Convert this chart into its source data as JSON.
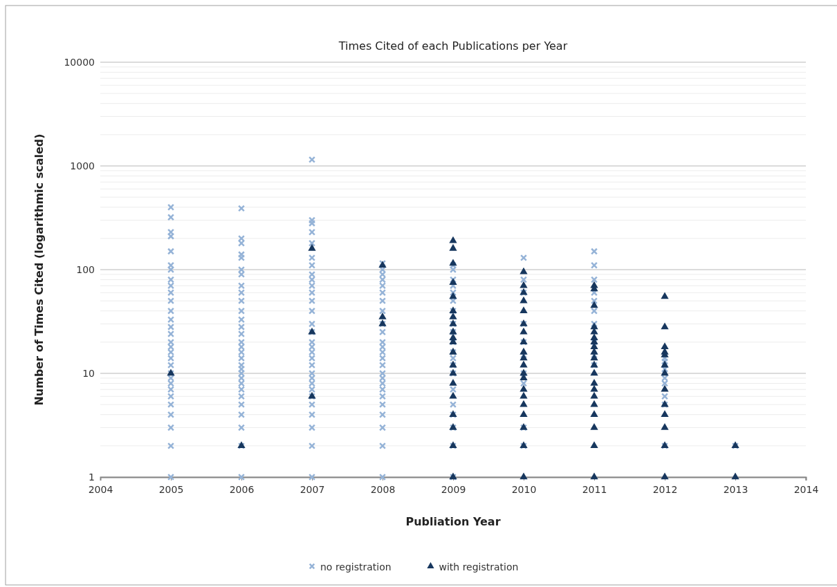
{
  "chart_data": {
    "type": "scatter",
    "title": "Times Cited of each Publications per Year",
    "xlabel": "Publiation Year",
    "ylabel": "Number of Times Cited (logarithmic scaled)",
    "xlim": [
      2004,
      2014
    ],
    "xticks": [
      2004,
      2005,
      2006,
      2007,
      2008,
      2009,
      2010,
      2011,
      2012,
      2013,
      2014
    ],
    "ylim": [
      1,
      10000
    ],
    "yticks": [
      1,
      10,
      100,
      1000,
      10000
    ],
    "log": "y",
    "grid": "y",
    "legend": "bottom",
    "series": [
      {
        "name": "no registration",
        "color": "#95b3d7",
        "marker": "cross",
        "x": [
          2005,
          2005,
          2005,
          2005,
          2005,
          2005,
          2005,
          2005,
          2005,
          2005,
          2005,
          2005,
          2005,
          2005,
          2005,
          2005,
          2005,
          2005,
          2005,
          2005,
          2005,
          2005,
          2005,
          2005,
          2005,
          2005,
          2005,
          2005,
          2005,
          2005,
          2006,
          2006,
          2006,
          2006,
          2006,
          2006,
          2006,
          2006,
          2006,
          2006,
          2006,
          2006,
          2006,
          2006,
          2006,
          2006,
          2006,
          2006,
          2006,
          2006,
          2006,
          2006,
          2006,
          2006,
          2006,
          2006,
          2006,
          2006,
          2006,
          2006,
          2007,
          2007,
          2007,
          2007,
          2007,
          2007,
          2007,
          2007,
          2007,
          2007,
          2007,
          2007,
          2007,
          2007,
          2007,
          2007,
          2007,
          2007,
          2007,
          2007,
          2007,
          2007,
          2007,
          2007,
          2007,
          2007,
          2007,
          2007,
          2007,
          2007,
          2008,
          2008,
          2008,
          2008,
          2008,
          2008,
          2008,
          2008,
          2008,
          2008,
          2008,
          2008,
          2008,
          2008,
          2008,
          2008,
          2008,
          2008,
          2008,
          2008,
          2008,
          2008,
          2008,
          2008,
          2008,
          2009,
          2009,
          2009,
          2009,
          2009,
          2009,
          2009,
          2009,
          2009,
          2009,
          2009,
          2009,
          2009,
          2009,
          2009,
          2009,
          2009,
          2009,
          2009,
          2009,
          2010,
          2010,
          2010,
          2010,
          2010,
          2010,
          2010,
          2010,
          2010,
          2010,
          2011,
          2011,
          2011,
          2011,
          2011,
          2011,
          2011,
          2011,
          2011,
          2011,
          2012,
          2012,
          2012,
          2012,
          2012,
          2012,
          2012,
          2012,
          2012,
          2012,
          2013
        ],
        "values": [
          1,
          2,
          3,
          4,
          5,
          6,
          7,
          8,
          9,
          10,
          12,
          14,
          16,
          18,
          20,
          24,
          28,
          33,
          40,
          50,
          60,
          70,
          80,
          100,
          110,
          150,
          210,
          230,
          320,
          400,
          1,
          2,
          3,
          4,
          5,
          6,
          7,
          8,
          9,
          10,
          11,
          12,
          14,
          16,
          18,
          20,
          24,
          28,
          33,
          40,
          50,
          60,
          70,
          90,
          100,
          130,
          140,
          180,
          200,
          390,
          1,
          2,
          3,
          4,
          5,
          6,
          7,
          8,
          9,
          10,
          12,
          14,
          16,
          18,
          20,
          25,
          30,
          40,
          50,
          60,
          70,
          80,
          90,
          110,
          130,
          180,
          230,
          280,
          300,
          1150,
          1,
          2,
          3,
          4,
          5,
          6,
          7,
          8,
          9,
          10,
          12,
          14,
          16,
          18,
          20,
          25,
          30,
          40,
          50,
          60,
          70,
          80,
          90,
          100,
          115,
          1,
          2,
          3,
          4,
          5,
          7,
          10,
          12,
          14,
          16,
          20,
          25,
          30,
          40,
          50,
          60,
          70,
          80,
          100,
          110,
          2,
          3,
          8,
          10,
          15,
          20,
          30,
          60,
          80,
          130,
          12,
          15,
          20,
          30,
          40,
          50,
          60,
          80,
          110,
          150,
          2,
          5,
          6,
          8,
          9,
          10,
          11,
          12,
          13,
          14,
          2
        ]
      },
      {
        "name": "with registration",
        "color": "#17375e",
        "marker": "triangle",
        "x": [
          2005,
          2006,
          2007,
          2007,
          2007,
          2008,
          2008,
          2008,
          2009,
          2009,
          2009,
          2009,
          2009,
          2009,
          2009,
          2009,
          2009,
          2009,
          2009,
          2009,
          2009,
          2009,
          2009,
          2009,
          2009,
          2009,
          2009,
          2009,
          2010,
          2010,
          2010,
          2010,
          2010,
          2010,
          2010,
          2010,
          2010,
          2010,
          2010,
          2010,
          2010,
          2010,
          2010,
          2010,
          2010,
          2010,
          2010,
          2010,
          2011,
          2011,
          2011,
          2011,
          2011,
          2011,
          2011,
          2011,
          2011,
          2011,
          2011,
          2011,
          2011,
          2011,
          2011,
          2011,
          2011,
          2011,
          2011,
          2011,
          2012,
          2012,
          2012,
          2012,
          2012,
          2012,
          2012,
          2012,
          2012,
          2012,
          2012,
          2012,
          2012,
          2013,
          2013
        ],
        "values": [
          10,
          2,
          6,
          25,
          160,
          30,
          35,
          110,
          1,
          2,
          3,
          4,
          6,
          8,
          10,
          12,
          16,
          20,
          22,
          25,
          30,
          35,
          40,
          55,
          75,
          115,
          160,
          190,
          1,
          2,
          3,
          4,
          5,
          6,
          7,
          9,
          10,
          12,
          14,
          16,
          20,
          25,
          30,
          40,
          50,
          60,
          70,
          95,
          1,
          2,
          3,
          4,
          5,
          6,
          7,
          8,
          10,
          12,
          14,
          16,
          18,
          20,
          22,
          25,
          28,
          45,
          65,
          70,
          1,
          2,
          3,
          4,
          5,
          7,
          10,
          12,
          15,
          16,
          18,
          28,
          55,
          1,
          2
        ]
      }
    ]
  }
}
